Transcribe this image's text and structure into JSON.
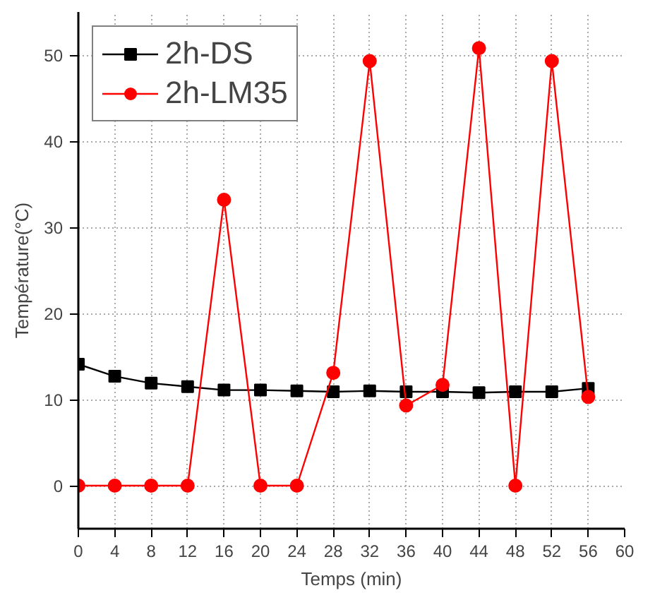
{
  "chart_data": {
    "type": "line",
    "xlabel": "Temps (min)",
    "ylabel": "Température(°C)",
    "x": [
      0,
      4,
      8,
      12,
      16,
      20,
      24,
      28,
      32,
      36,
      40,
      44,
      48,
      52,
      56
    ],
    "series": [
      {
        "name": "2h-DS",
        "color": "#000000",
        "marker": "square",
        "values": [
          14.1,
          12.7,
          11.9,
          11.5,
          11.1,
          11.1,
          11.0,
          10.9,
          11.0,
          10.9,
          10.9,
          10.8,
          10.9,
          10.9,
          11.3
        ]
      },
      {
        "name": "2h-LM35",
        "color": "#ff0000",
        "marker": "circle",
        "values": [
          0,
          0,
          0,
          0,
          33.2,
          0,
          0,
          13.1,
          49.3,
          9.3,
          11.7,
          50.8,
          0,
          49.3,
          10.3
        ]
      }
    ],
    "xlim": [
      0,
      60
    ],
    "xticks": [
      0,
      4,
      8,
      12,
      16,
      20,
      24,
      28,
      32,
      36,
      40,
      44,
      48,
      52,
      56,
      60
    ],
    "ylim": [
      -5,
      55
    ],
    "yticks": [
      0,
      10,
      20,
      30,
      40,
      50
    ],
    "grid": true,
    "legend": "top left",
    "line_style": "solid"
  }
}
